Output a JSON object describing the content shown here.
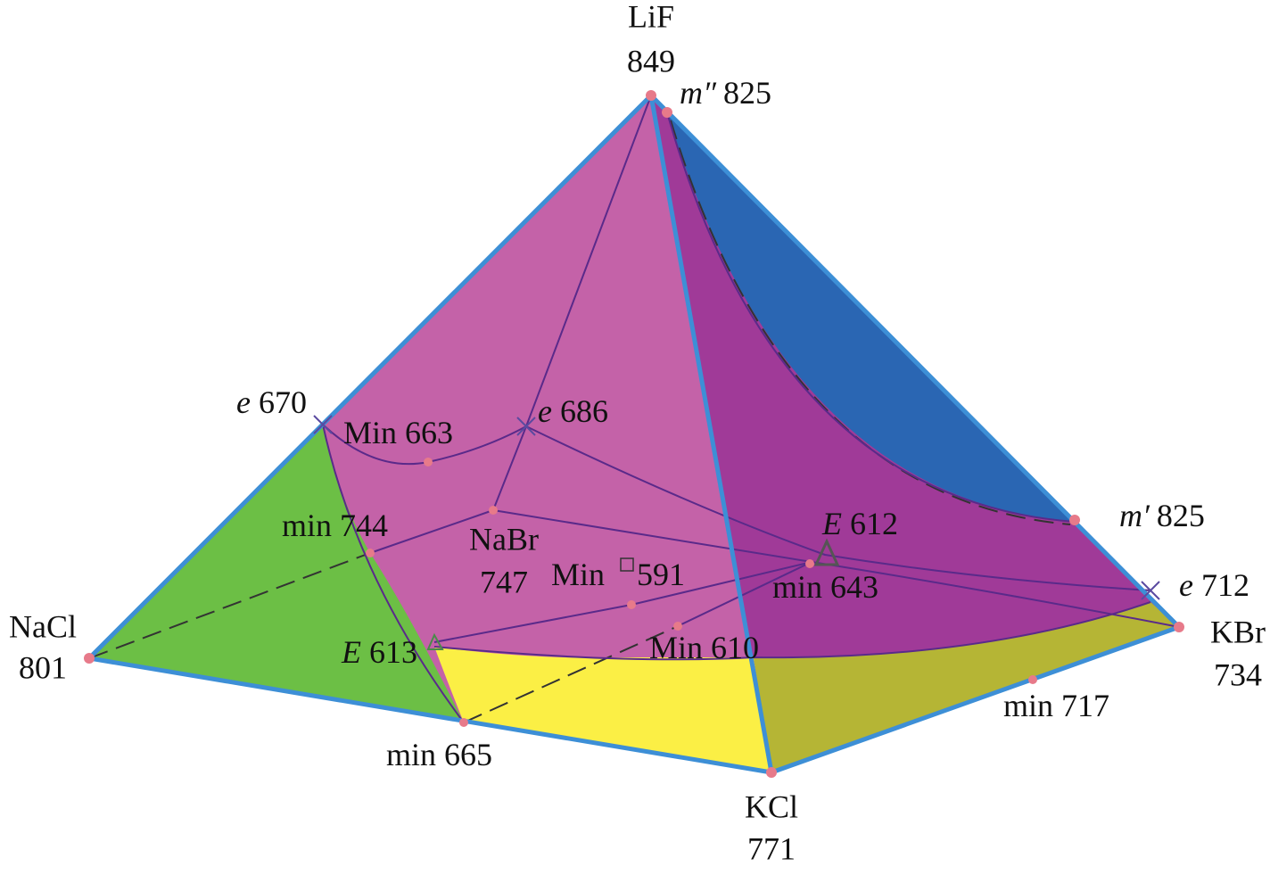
{
  "nodes": [
    {
      "name": "LiF",
      "temp": 849
    },
    {
      "name": "NaCl",
      "temp": 801
    },
    {
      "name": "KCl",
      "temp": 771
    },
    {
      "name": "KBr",
      "temp": 734
    },
    {
      "name": "NaBr",
      "temp": 747
    }
  ],
  "points": [
    {
      "symbol": "m″",
      "temp": 825
    },
    {
      "symbol": "m′",
      "temp": 825
    },
    {
      "symbol": "e",
      "temp": 670
    },
    {
      "symbol": "e",
      "temp": 686
    },
    {
      "symbol": "e",
      "temp": 712
    },
    {
      "symbol": "E",
      "temp": 612
    },
    {
      "symbol": "E",
      "temp": 613
    }
  ],
  "extrema": [
    {
      "label": "Min",
      "temp": 663
    },
    {
      "label": "min",
      "temp": 744
    },
    {
      "label": "Min",
      "temp": 591
    },
    {
      "label": "min",
      "temp": 643
    },
    {
      "label": "Min",
      "temp": 610
    },
    {
      "label": "min",
      "temp": 717
    },
    {
      "label": "min",
      "temp": 665
    }
  ]
}
